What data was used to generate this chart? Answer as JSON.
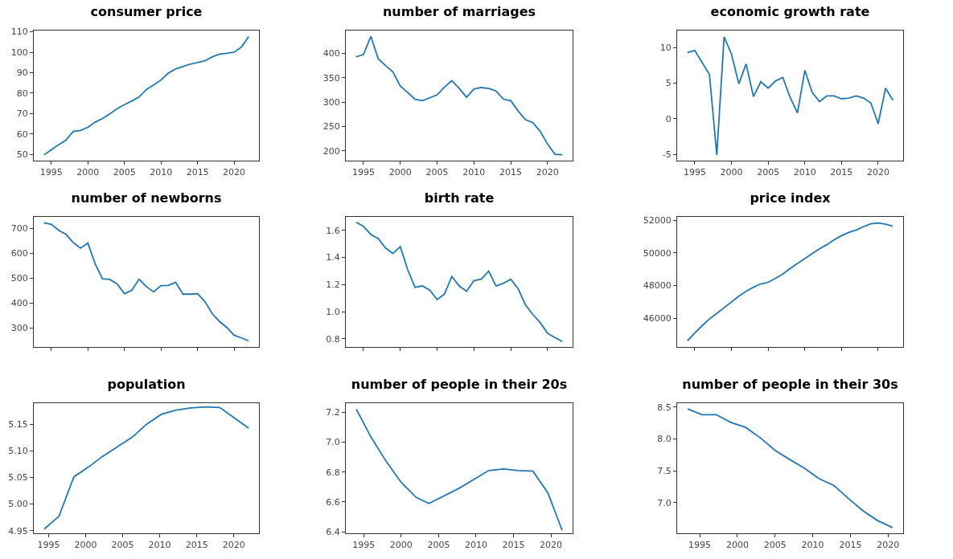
{
  "chart_data": [
    {
      "type": "line",
      "title": "consumer price",
      "x": [
        1994,
        1995,
        1996,
        1997,
        1998,
        1999,
        2000,
        2001,
        2002,
        2003,
        2004,
        2005,
        2006,
        2007,
        2008,
        2009,
        2010,
        2011,
        2012,
        2013,
        2014,
        2015,
        2016,
        2017,
        2018,
        2019,
        2020,
        2021,
        2022
      ],
      "series": [
        {
          "color": "#1f77b4",
          "values": [
            49.8,
            52.3,
            54.8,
            57.0,
            61.3,
            61.8,
            63.3,
            65.8,
            67.6,
            69.9,
            72.4,
            74.4,
            76.1,
            78.1,
            81.8,
            84.0,
            86.4,
            89.8,
            91.8,
            93.0,
            94.2,
            94.9,
            95.8,
            97.7,
            99.1,
            99.5,
            100,
            102.5,
            107.7
          ]
        }
      ],
      "xlim": [
        1992.6,
        2023.4
      ],
      "xticks": [
        1995,
        2000,
        2005,
        2010,
        2015,
        2020
      ],
      "ylim": [
        47,
        110.6
      ],
      "yticks": [
        50,
        60,
        70,
        80,
        90,
        100,
        110
      ]
    },
    {
      "type": "line",
      "title": "number of marriages",
      "x": [
        1994,
        1995,
        1996,
        1997,
        1998,
        1999,
        2000,
        2001,
        2002,
        2003,
        2004,
        2005,
        2006,
        2007,
        2008,
        2009,
        2010,
        2011,
        2012,
        2013,
        2014,
        2015,
        2016,
        2017,
        2018,
        2019,
        2020,
        2021,
        2022
      ],
      "series": [
        {
          "color": "#1f77b4",
          "values": [
            393,
            398,
            435,
            389,
            375,
            362,
            333,
            320,
            306,
            303,
            309,
            315,
            331,
            344,
            328,
            310,
            327,
            330,
            328,
            323,
            306,
            303,
            282,
            264,
            258,
            240,
            214,
            193,
            192
          ]
        }
      ],
      "xlim": [
        1992.6,
        2023.4
      ],
      "xticks": [
        1995,
        2000,
        2005,
        2010,
        2015,
        2020
      ],
      "ylim": [
        180,
        447
      ],
      "yticks": [
        200,
        250,
        300,
        350,
        400
      ]
    },
    {
      "type": "line",
      "title": "economic growth rate",
      "x": [
        1994,
        1995,
        1996,
        1997,
        1998,
        1999,
        2000,
        2001,
        2002,
        2003,
        2004,
        2005,
        2006,
        2007,
        2008,
        2009,
        2010,
        2011,
        2012,
        2013,
        2014,
        2015,
        2016,
        2017,
        2018,
        2019,
        2020,
        2021,
        2022
      ],
      "series": [
        {
          "color": "#1f77b4",
          "values": [
            9.3,
            9.6,
            7.9,
            6.2,
            -5.1,
            11.5,
            9.1,
            4.9,
            7.7,
            3.1,
            5.2,
            4.3,
            5.3,
            5.8,
            3.0,
            0.8,
            6.8,
            3.7,
            2.4,
            3.2,
            3.2,
            2.8,
            2.9,
            3.2,
            2.9,
            2.2,
            -0.7,
            4.3,
            2.6
          ]
        }
      ],
      "xlim": [
        1992.6,
        2023.4
      ],
      "xticks": [
        1995,
        2000,
        2005,
        2010,
        2015,
        2020
      ],
      "ylim": [
        -5.9,
        12.4
      ],
      "yticks": [
        -5,
        0,
        5,
        10
      ]
    },
    {
      "type": "line",
      "title": "number of newborns",
      "x": [
        1994,
        1995,
        1996,
        1997,
        1998,
        1999,
        2000,
        2001,
        2002,
        2003,
        2004,
        2005,
        2006,
        2007,
        2008,
        2009,
        2010,
        2011,
        2012,
        2013,
        2014,
        2015,
        2016,
        2017,
        2018,
        2019,
        2020,
        2021,
        2022
      ],
      "series": [
        {
          "color": "#1f77b4",
          "values": [
            721,
            715,
            691,
            675,
            642,
            620,
            640,
            557,
            497,
            495,
            477,
            438,
            451,
            496,
            466,
            445,
            470,
            471,
            484,
            436,
            436,
            438,
            407,
            358,
            327,
            303,
            272,
            261,
            249
          ]
        }
      ],
      "xlim": [
        1992.6,
        2023.4
      ],
      "xticks": [
        1995,
        2000,
        2005,
        2010,
        2015,
        2020
      ],
      "tick_labels": "y",
      "ylim": [
        225,
        745
      ],
      "yticks": [
        300,
        400,
        500,
        600,
        700
      ]
    },
    {
      "type": "line",
      "title": "birth rate",
      "x": [
        1994,
        1995,
        1996,
        1997,
        1998,
        1999,
        2000,
        2001,
        2002,
        2003,
        2004,
        2005,
        2006,
        2007,
        2008,
        2009,
        2010,
        2011,
        2012,
        2013,
        2014,
        2015,
        2016,
        2017,
        2018,
        2019,
        2020,
        2021,
        2022
      ],
      "series": [
        {
          "color": "#1f77b4",
          "values": [
            1.66,
            1.63,
            1.57,
            1.54,
            1.47,
            1.43,
            1.48,
            1.31,
            1.18,
            1.19,
            1.16,
            1.09,
            1.13,
            1.26,
            1.19,
            1.15,
            1.23,
            1.24,
            1.3,
            1.19,
            1.21,
            1.24,
            1.17,
            1.05,
            0.98,
            0.92,
            0.84,
            0.81,
            0.78
          ]
        }
      ],
      "xlim": [
        1992.6,
        2023.4
      ],
      "xticks": [
        1995,
        2000,
        2005,
        2010,
        2015,
        2020
      ],
      "tick_labels": "y",
      "ylim": [
        0.74,
        1.7
      ],
      "yticks": [
        {
          "value": 0.8,
          "label": "0.8"
        },
        {
          "value": 1.0,
          "label": "1.0"
        },
        {
          "value": 1.2,
          "label": "1.2"
        },
        {
          "value": 1.4,
          "label": "1.4"
        },
        {
          "value": 1.6,
          "label": "1.6"
        }
      ]
    },
    {
      "type": "line",
      "title": "price index",
      "x": [
        1994,
        1995,
        1996,
        1997,
        1998,
        1999,
        2000,
        2001,
        2002,
        2003,
        2004,
        2005,
        2006,
        2007,
        2008,
        2009,
        2010,
        2011,
        2012,
        2013,
        2014,
        2015,
        2016,
        2017,
        2018,
        2019,
        2020,
        2021,
        2022
      ],
      "series": [
        {
          "color": "#1f77b4",
          "values": [
            44630,
            45100,
            45550,
            45960,
            46300,
            46650,
            47000,
            47350,
            47650,
            47900,
            48100,
            48200,
            48450,
            48700,
            49050,
            49350,
            49650,
            49950,
            50250,
            50500,
            50800,
            51050,
            51250,
            51400,
            51600,
            51780,
            51830,
            51750,
            51630
          ]
        }
      ],
      "xlim": [
        1992.6,
        2023.4
      ],
      "xticks": [
        1995,
        2000,
        2005,
        2010,
        2015,
        2020
      ],
      "tick_labels": "y",
      "ylim": [
        44250,
        52200
      ],
      "yticks": [
        46000,
        48000,
        50000,
        52000
      ]
    },
    {
      "type": "line",
      "title": "population",
      "x": [
        1994.4,
        1996.4,
        1998.4,
        2000.4,
        2002.3,
        2004.3,
        2006.3,
        2008.2,
        2010.2,
        2012.2,
        2014.2,
        2016.2,
        2018.1,
        2022.0
      ],
      "series": [
        {
          "color": "#1f77b4",
          "values": [
            4.953,
            4.977,
            5.051,
            5.07,
            5.09,
            5.108,
            5.126,
            5.15,
            5.169,
            5.177,
            5.181,
            5.183,
            5.182,
            5.143
          ]
        }
      ],
      "xlim": [
        1993,
        2023.4
      ],
      "xticks": [
        1995,
        2000,
        2005,
        2010,
        2015,
        2020
      ],
      "ylim": [
        4.945,
        5.19
      ],
      "yticks": [
        {
          "value": 4.95,
          "label": "4.95"
        },
        {
          "value": 5.0,
          "label": "5.00"
        },
        {
          "value": 5.05,
          "label": "5.05"
        },
        {
          "value": 5.1,
          "label": "5.10"
        },
        {
          "value": 5.15,
          "label": "5.15"
        }
      ]
    },
    {
      "type": "line",
      "title": "number of people in their 20s",
      "x": [
        1994,
        1996,
        1998,
        2000,
        2002,
        2003.7,
        2005.7,
        2007.7,
        2009.7,
        2011.7,
        2013.7,
        2015.6,
        2017.6,
        2019.6,
        2021.5
      ],
      "series": [
        {
          "color": "#1f77b4",
          "values": [
            7.22,
            7.03,
            6.87,
            6.73,
            6.63,
            6.59,
            6.64,
            6.69,
            6.75,
            6.81,
            6.82,
            6.81,
            6.805,
            6.66,
            6.41
          ]
        }
      ],
      "xlim": [
        1992.6,
        2022.9
      ],
      "xticks": [
        1995,
        2000,
        2005,
        2010,
        2015,
        2020
      ],
      "ylim": [
        6.39,
        7.26
      ],
      "yticks": [
        {
          "value": 6.4,
          "label": "6.4"
        },
        {
          "value": 6.6,
          "label": "6.6"
        },
        {
          "value": 6.8,
          "label": "6.8"
        },
        {
          "value": 7.0,
          "label": "7.0"
        },
        {
          "value": 7.2,
          "label": "7.2"
        }
      ]
    },
    {
      "type": "line",
      "title": "number of people in their 30s",
      "x": [
        1993.4,
        1995.3,
        1997.2,
        1999.1,
        2001.1,
        2003,
        2005,
        2006.9,
        2008.9,
        2010.8,
        2012.8,
        2014.7,
        2016.7,
        2018.6,
        2020.6
      ],
      "series": [
        {
          "color": "#1f77b4",
          "values": [
            8.47,
            8.38,
            8.38,
            8.26,
            8.18,
            8.02,
            7.82,
            7.68,
            7.54,
            7.38,
            7.27,
            7.07,
            6.87,
            6.72,
            6.61
          ]
        }
      ],
      "xlim": [
        1992,
        2022
      ],
      "xticks": [
        1995,
        2000,
        2005,
        2010,
        2015,
        2020
      ],
      "ylim": [
        6.52,
        8.56
      ],
      "yticks": [
        {
          "value": 7.0,
          "label": "7.0"
        },
        {
          "value": 7.5,
          "label": "7.5"
        },
        {
          "value": 8.0,
          "label": "8.0"
        },
        {
          "value": 8.5,
          "label": "8.5"
        }
      ]
    }
  ]
}
